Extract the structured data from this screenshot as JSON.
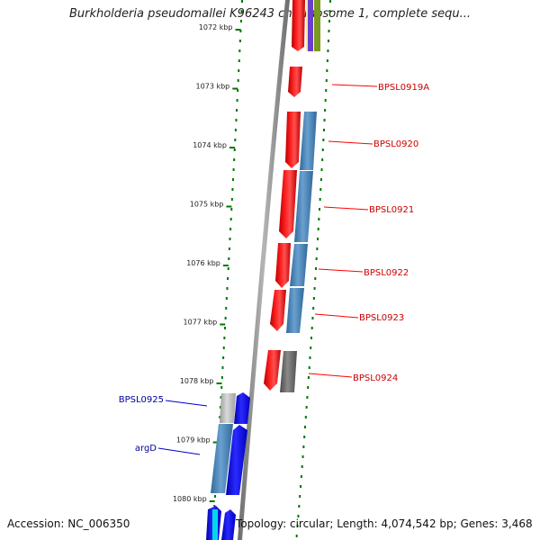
{
  "title": "Burkholderia pseudomallei K96243 chromosome 1, complete sequ...",
  "footer": {
    "accession": "Accession: NC_006350",
    "topology": "Topology: circular; Length: 4,074,542 bp; Genes: 3,468"
  },
  "scale": {
    "ticks": [
      {
        "label": "1072 kbp",
        "kbp": 1072
      },
      {
        "label": "1073 kbp",
        "kbp": 1073
      },
      {
        "label": "1074 kbp",
        "kbp": 1074
      },
      {
        "label": "1075 kbp",
        "kbp": 1075
      },
      {
        "label": "1076 kbp",
        "kbp": 1076
      },
      {
        "label": "1077 kbp",
        "kbp": 1077
      },
      {
        "label": "1078 kbp",
        "kbp": 1078
      },
      {
        "label": "1079 kbp",
        "kbp": 1079
      },
      {
        "label": "1080 kbp",
        "kbp": 1080
      }
    ]
  },
  "genes": [
    {
      "name": "BPSL0919A",
      "strand": "+",
      "color": "#cc0000"
    },
    {
      "name": "BPSL0920",
      "strand": "+",
      "color": "#cc0000"
    },
    {
      "name": "BPSL0921",
      "strand": "+",
      "color": "#cc0000"
    },
    {
      "name": "BPSL0922",
      "strand": "+",
      "color": "#cc0000"
    },
    {
      "name": "BPSL0923",
      "strand": "+",
      "color": "#cc0000"
    },
    {
      "name": "BPSL0924",
      "strand": "+",
      "color": "#cc0000"
    },
    {
      "name": "BPSL0925",
      "strand": "-",
      "color": "#000099"
    },
    {
      "name": "argD",
      "strand": "-",
      "color": "#000099"
    }
  ],
  "colors": {
    "forward": "#ff0000",
    "reverse": "#0000ff",
    "cog_blue": "#4a86b8",
    "cog_gray": "#666666",
    "backbone": "#8c8c8c",
    "tick": "#007700"
  }
}
